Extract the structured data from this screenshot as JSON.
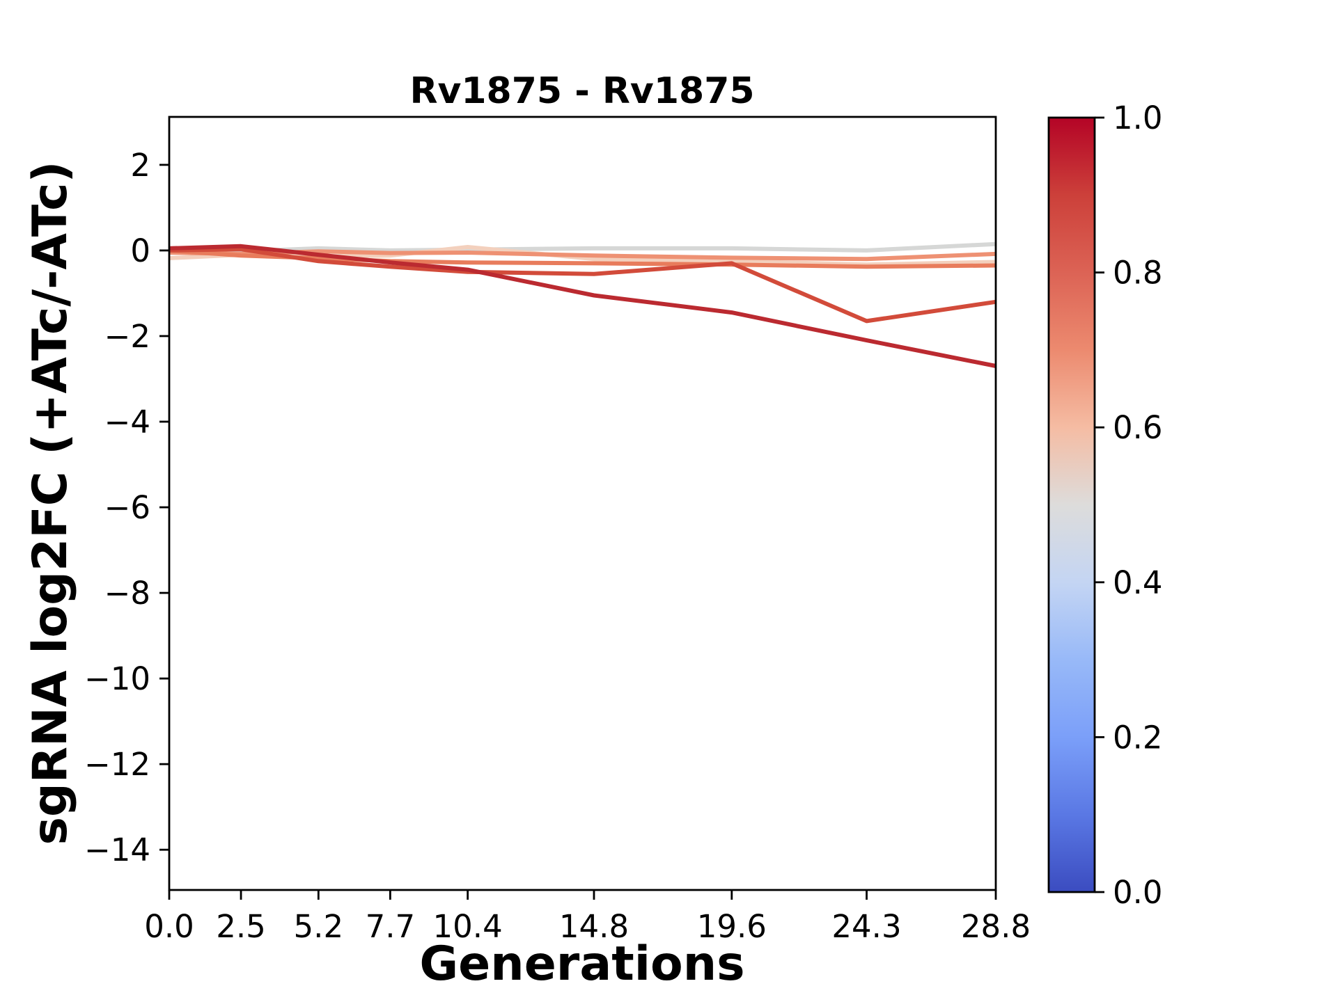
{
  "figure": {
    "title": "Rv1875 - Rv1875",
    "xlabel": "Generations",
    "ylabel": "sgRNA log2FC (+ATc/-ATc)"
  },
  "chart_data": {
    "type": "line",
    "title": "Rv1875 - Rv1875",
    "xlabel": "Generations",
    "ylabel": "sgRNA log2FC (+ATc/-ATc)",
    "grid": false,
    "legend_position": "none",
    "x": [
      0.0,
      2.5,
      5.2,
      7.7,
      10.4,
      14.8,
      19.6,
      24.3,
      28.8
    ],
    "x_tick_labels": [
      "0.0",
      "2.5",
      "5.2",
      "7.7",
      "10.4",
      "14.8",
      "19.6",
      "24.3",
      "28.8"
    ],
    "y_ticks": [
      2,
      0,
      -2,
      -4,
      -6,
      -8,
      -10,
      -12,
      -14
    ],
    "y_tick_labels": [
      "2",
      "0",
      "−2",
      "−4",
      "−6",
      "−8",
      "−10",
      "−12",
      "−14"
    ],
    "xlim": [
      0,
      28.8
    ],
    "ylim": [
      -14.94,
      3.12
    ],
    "series": [
      {
        "colormap_value": 0.5,
        "color": "#d6d7d6",
        "values": [
          0.02,
          -0.02,
          0.05,
          0.0,
          0.02,
          0.05,
          0.05,
          0.0,
          0.15
        ]
      },
      {
        "colormap_value": 0.6,
        "color": "#f3d0bd",
        "values": [
          -0.18,
          -0.1,
          -0.14,
          -0.12,
          0.08,
          -0.2,
          -0.25,
          -0.33,
          -0.27
        ]
      },
      {
        "colormap_value": 0.7,
        "color": "#ee9173",
        "values": [
          -0.05,
          -0.08,
          -0.02,
          -0.06,
          -0.05,
          -0.12,
          -0.17,
          -0.2,
          -0.08
        ]
      },
      {
        "colormap_value": 0.76,
        "color": "#e87c5c",
        "values": [
          0.0,
          -0.12,
          -0.18,
          -0.25,
          -0.28,
          -0.3,
          -0.33,
          -0.38,
          -0.35
        ]
      },
      {
        "colormap_value": 0.88,
        "color": "#d24b3a",
        "values": [
          0.0,
          0.03,
          -0.25,
          -0.38,
          -0.5,
          -0.55,
          -0.3,
          -1.65,
          -1.2
        ]
      },
      {
        "colormap_value": 0.97,
        "color": "#bb2a30",
        "values": [
          0.05,
          0.1,
          -0.1,
          -0.28,
          -0.45,
          -1.05,
          -1.45,
          -2.1,
          -2.7
        ]
      }
    ],
    "colorbar": {
      "orientation": "vertical",
      "colormap": "coolwarm",
      "range": [
        0.0,
        1.0
      ],
      "tick_values": [
        1.0,
        0.8,
        0.6,
        0.4,
        0.2,
        0.0
      ],
      "tick_labels": [
        "1.0",
        "0.8",
        "0.6",
        "0.4",
        "0.2",
        "0.0"
      ],
      "gradient": [
        {
          "value": 1.0,
          "color": "#b40426"
        },
        {
          "value": 0.9,
          "color": "#cc403a"
        },
        {
          "value": 0.8,
          "color": "#dc6355"
        },
        {
          "value": 0.7,
          "color": "#ec8a6f"
        },
        {
          "value": 0.6,
          "color": "#f5bca3"
        },
        {
          "value": 0.5,
          "color": "#dddcdb"
        },
        {
          "value": 0.4,
          "color": "#c4d5f3"
        },
        {
          "value": 0.3,
          "color": "#98b9f8"
        },
        {
          "value": 0.2,
          "color": "#7b9ff9"
        },
        {
          "value": 0.1,
          "color": "#5a78e4"
        },
        {
          "value": 0.0,
          "color": "#3b4cc0"
        }
      ]
    }
  }
}
